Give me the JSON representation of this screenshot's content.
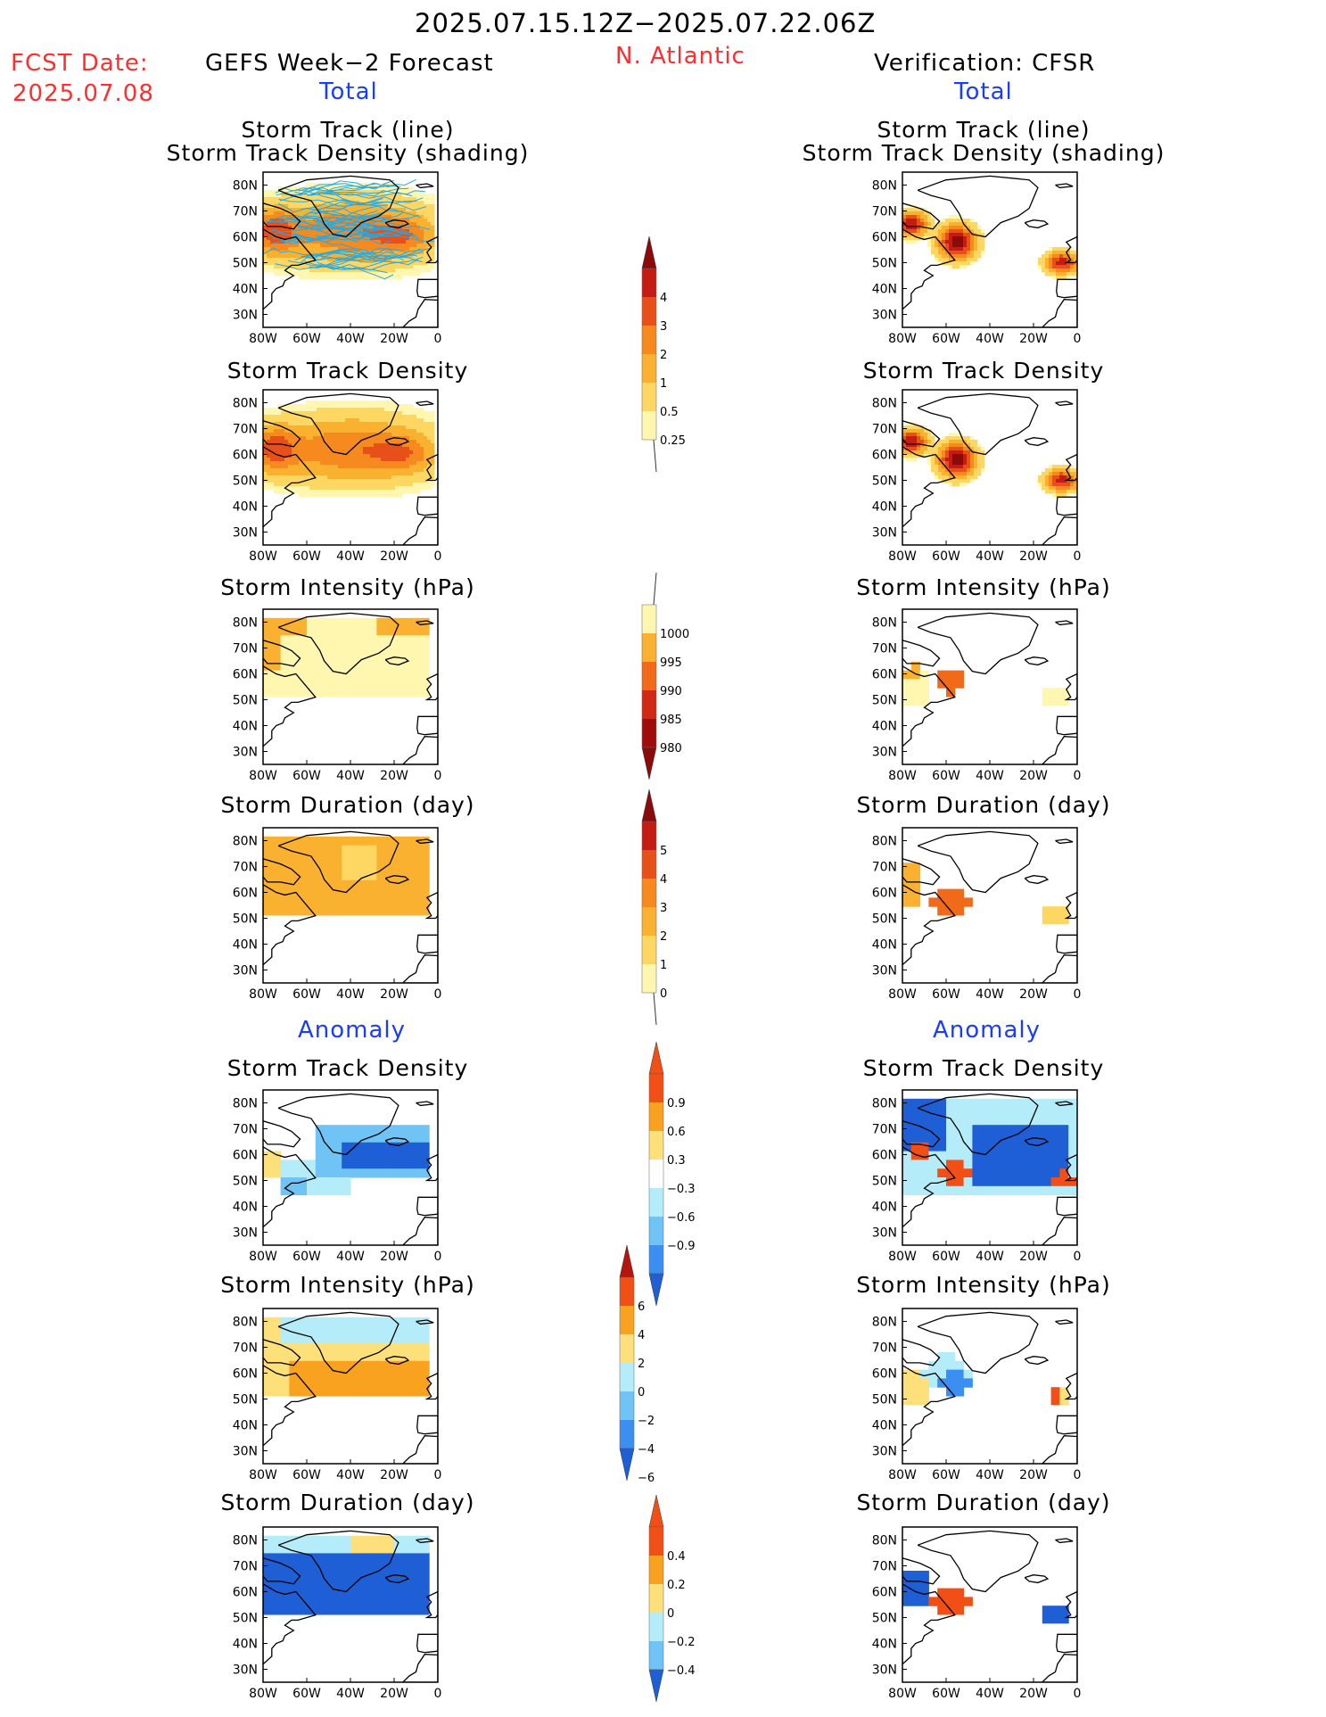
{
  "header": {
    "date_range": "2025.07.15.12Z−2025.07.22.06Z",
    "fcst_label": "FCST Date:",
    "fcst_date": "2025.07.08",
    "left_title": "GEFS Week−2 Forecast",
    "region": "N. Atlantic",
    "right_title": "Verification: CFSR",
    "left_section_total": "Total",
    "right_section_total": "Total",
    "left_section_anomaly": "Anomaly",
    "right_section_anomaly": "Anomaly"
  },
  "panel_titles": {
    "track_line": "Storm Track (line)",
    "track_shading": "Storm Track Density (shading)",
    "density": "Storm Track Density",
    "intensity": "Storm Intensity (hPa)",
    "duration": "Storm Duration (day)"
  },
  "axes": {
    "lat_ticks": [
      "80N",
      "70N",
      "60N",
      "50N",
      "40N",
      "30N"
    ],
    "lon_ticks": [
      "80W",
      "60W",
      "40W",
      "20W",
      "0"
    ]
  },
  "colors": {
    "density_scale": [
      "#fff6b0",
      "#fdd762",
      "#fbb130",
      "#f78a1e",
      "#e8501a",
      "#c41b12",
      "#8b0a0a"
    ],
    "intensity_scale": [
      "#fff6b0",
      "#fbb130",
      "#f06a1a",
      "#d12a14",
      "#a00c0c",
      "#8b0a0a"
    ],
    "anomaly_pos": [
      "#fde07a",
      "#f9a21f",
      "#f24f16",
      "#b5140f"
    ],
    "anomaly_neg": [
      "#b4ecfa",
      "#6fc3f5",
      "#3b8ff0",
      "#1f5fd6"
    ],
    "track_line": "#29a8e0"
  },
  "chart_data": [
    {
      "type": "heatmap",
      "panel": "forecast-total-track-density-with-tracks",
      "xlabel": "",
      "ylabel": "",
      "xlim": [
        -80,
        0
      ],
      "ylim": [
        25,
        85
      ],
      "colorbar": [
        0.25,
        0.5,
        1,
        2,
        3,
        4
      ]
    },
    {
      "type": "heatmap",
      "panel": "verification-total-track-density-with-tracks",
      "xlim": [
        -80,
        0
      ],
      "ylim": [
        25,
        85
      ]
    },
    {
      "type": "heatmap",
      "panel": "forecast-total-track-density",
      "xlim": [
        -80,
        0
      ],
      "ylim": [
        25,
        85
      ]
    },
    {
      "type": "heatmap",
      "panel": "verification-total-track-density",
      "xlim": [
        -80,
        0
      ],
      "ylim": [
        25,
        85
      ]
    },
    {
      "type": "heatmap",
      "panel": "forecast-total-intensity",
      "xlim": [
        -80,
        0
      ],
      "ylim": [
        25,
        85
      ],
      "colorbar": [
        1000,
        995,
        990,
        985,
        980
      ]
    },
    {
      "type": "heatmap",
      "panel": "verification-total-intensity",
      "xlim": [
        -80,
        0
      ],
      "ylim": [
        25,
        85
      ]
    },
    {
      "type": "heatmap",
      "panel": "forecast-total-duration",
      "xlim": [
        -80,
        0
      ],
      "ylim": [
        25,
        85
      ],
      "colorbar": [
        0,
        1,
        2,
        3,
        4,
        5
      ]
    },
    {
      "type": "heatmap",
      "panel": "verification-total-duration",
      "xlim": [
        -80,
        0
      ],
      "ylim": [
        25,
        85
      ]
    },
    {
      "type": "heatmap",
      "panel": "forecast-anomaly-density",
      "xlim": [
        -80,
        0
      ],
      "ylim": [
        25,
        85
      ],
      "colorbar": [
        -0.9,
        -0.6,
        -0.3,
        0.3,
        0.6,
        0.9
      ]
    },
    {
      "type": "heatmap",
      "panel": "verification-anomaly-density",
      "xlim": [
        -80,
        0
      ],
      "ylim": [
        25,
        85
      ]
    },
    {
      "type": "heatmap",
      "panel": "forecast-anomaly-intensity",
      "xlim": [
        -80,
        0
      ],
      "ylim": [
        25,
        85
      ],
      "colorbar": [
        -6,
        -4,
        -2,
        0,
        2,
        4,
        6
      ]
    },
    {
      "type": "heatmap",
      "panel": "verification-anomaly-intensity",
      "xlim": [
        -80,
        0
      ],
      "ylim": [
        25,
        85
      ]
    },
    {
      "type": "heatmap",
      "panel": "forecast-anomaly-duration",
      "xlim": [
        -80,
        0
      ],
      "ylim": [
        25,
        85
      ],
      "colorbar": [
        -0.4,
        -0.2,
        0,
        0.2,
        0.4
      ]
    },
    {
      "type": "heatmap",
      "panel": "verification-anomaly-duration",
      "xlim": [
        -80,
        0
      ],
      "ylim": [
        25,
        85
      ]
    }
  ],
  "colorbars": {
    "density": [
      "4",
      "3",
      "2",
      "1",
      "0.5",
      "0.25"
    ],
    "intensity": [
      "1000",
      "995",
      "990",
      "985",
      "980"
    ],
    "duration": [
      "5",
      "4",
      "3",
      "2",
      "1",
      "0"
    ],
    "anom_density": [
      "0.9",
      "0.6",
      "0.3",
      "−0.3",
      "−0.6",
      "−0.9"
    ],
    "anom_intensity": [
      "6",
      "4",
      "2",
      "0",
      "−2",
      "−4",
      "−6"
    ],
    "anom_duration": [
      "0.4",
      "0.2",
      "0",
      "−0.2",
      "−0.4"
    ]
  }
}
